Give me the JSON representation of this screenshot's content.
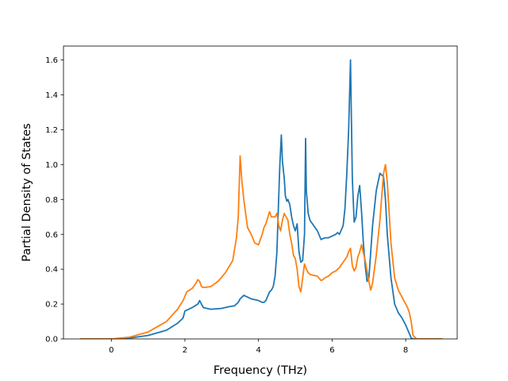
{
  "chart_data": {
    "type": "line",
    "title": "",
    "xlabel": "Frequency (THz)",
    "ylabel": "Partial Density of States",
    "xlim": [
      -1.3,
      9.4
    ],
    "ylim": [
      0,
      1.68
    ],
    "xticks": [
      0,
      2,
      4,
      6,
      8
    ],
    "xtick_labels": [
      "0",
      "2",
      "4",
      "6",
      "8"
    ],
    "yticks": [
      0.0,
      0.2,
      0.4,
      0.6,
      0.8,
      1.0,
      1.2,
      1.4,
      1.6
    ],
    "ytick_labels": [
      "0.0",
      "0.2",
      "0.4",
      "0.6",
      "0.8",
      "1.0",
      "1.2",
      "1.4",
      "1.6"
    ],
    "grid": false,
    "legend": "none",
    "series": [
      {
        "color": "#1f77b4",
        "x": [
          -0.85,
          0.0,
          0.5,
          1.0,
          1.5,
          1.8,
          1.95,
          2.0,
          2.2,
          2.35,
          2.4,
          2.5,
          2.7,
          3.0,
          3.2,
          3.35,
          3.45,
          3.5,
          3.6,
          3.8,
          4.0,
          4.1,
          4.15,
          4.2,
          4.3,
          4.35,
          4.4,
          4.45,
          4.5,
          4.55,
          4.58,
          4.62,
          4.65,
          4.7,
          4.73,
          4.77,
          4.8,
          4.85,
          4.9,
          4.95,
          5.0,
          5.05,
          5.1,
          5.15,
          5.2,
          5.25,
          5.28,
          5.3,
          5.35,
          5.4,
          5.5,
          5.6,
          5.7,
          5.8,
          5.9,
          6.0,
          6.1,
          6.15,
          6.2,
          6.3,
          6.35,
          6.4,
          6.45,
          6.5,
          6.55,
          6.6,
          6.65,
          6.7,
          6.75,
          6.8,
          6.85,
          6.9,
          6.95,
          7.0,
          7.05,
          7.1,
          7.2,
          7.3,
          7.4,
          7.45,
          7.5,
          7.6,
          7.7,
          7.8,
          7.9,
          8.0,
          8.1,
          8.15,
          8.2,
          8.3,
          9.0
        ],
        "y": [
          0.0,
          0.0,
          0.005,
          0.02,
          0.05,
          0.09,
          0.12,
          0.16,
          0.18,
          0.2,
          0.22,
          0.18,
          0.17,
          0.175,
          0.185,
          0.19,
          0.21,
          0.23,
          0.25,
          0.23,
          0.22,
          0.21,
          0.21,
          0.22,
          0.27,
          0.28,
          0.3,
          0.36,
          0.5,
          0.82,
          1.0,
          1.17,
          1.02,
          0.92,
          0.82,
          0.79,
          0.8,
          0.77,
          0.7,
          0.65,
          0.62,
          0.66,
          0.5,
          0.44,
          0.45,
          0.6,
          1.15,
          0.85,
          0.72,
          0.68,
          0.65,
          0.62,
          0.57,
          0.58,
          0.58,
          0.59,
          0.6,
          0.61,
          0.6,
          0.65,
          0.75,
          0.95,
          1.2,
          1.6,
          0.92,
          0.67,
          0.7,
          0.82,
          0.88,
          0.73,
          0.55,
          0.42,
          0.33,
          0.35,
          0.5,
          0.65,
          0.85,
          0.95,
          0.93,
          0.8,
          0.6,
          0.35,
          0.2,
          0.15,
          0.12,
          0.08,
          0.03,
          0.005,
          0.0,
          0.0,
          0.0
        ]
      },
      {
        "color": "#ff7f0e",
        "x": [
          -0.85,
          0.0,
          0.5,
          1.0,
          1.5,
          1.8,
          1.95,
          2.05,
          2.2,
          2.3,
          2.35,
          2.4,
          2.45,
          2.5,
          2.7,
          2.9,
          3.1,
          3.3,
          3.4,
          3.45,
          3.5,
          3.55,
          3.6,
          3.7,
          3.8,
          3.9,
          4.0,
          4.1,
          4.15,
          4.2,
          4.3,
          4.35,
          4.4,
          4.45,
          4.5,
          4.55,
          4.6,
          4.65,
          4.7,
          4.75,
          4.8,
          4.85,
          4.9,
          4.95,
          5.0,
          5.05,
          5.1,
          5.15,
          5.2,
          5.25,
          5.3,
          5.35,
          5.4,
          5.5,
          5.6,
          5.7,
          5.75,
          5.8,
          5.9,
          6.0,
          6.1,
          6.15,
          6.2,
          6.3,
          6.4,
          6.45,
          6.5,
          6.55,
          6.6,
          6.65,
          6.7,
          6.75,
          6.8,
          6.9,
          7.0,
          7.05,
          7.1,
          7.2,
          7.3,
          7.35,
          7.4,
          7.45,
          7.5,
          7.6,
          7.7,
          7.8,
          7.9,
          8.0,
          8.05,
          8.1,
          8.15,
          8.2,
          8.3,
          9.0
        ],
        "y": [
          0.0,
          0.0,
          0.01,
          0.04,
          0.1,
          0.17,
          0.22,
          0.27,
          0.29,
          0.32,
          0.34,
          0.33,
          0.3,
          0.295,
          0.3,
          0.33,
          0.38,
          0.45,
          0.58,
          0.7,
          1.05,
          0.9,
          0.8,
          0.64,
          0.6,
          0.55,
          0.54,
          0.6,
          0.64,
          0.66,
          0.73,
          0.7,
          0.7,
          0.7,
          0.72,
          0.65,
          0.62,
          0.68,
          0.72,
          0.7,
          0.68,
          0.6,
          0.55,
          0.48,
          0.46,
          0.4,
          0.3,
          0.27,
          0.35,
          0.43,
          0.4,
          0.38,
          0.37,
          0.365,
          0.36,
          0.335,
          0.34,
          0.35,
          0.36,
          0.38,
          0.39,
          0.4,
          0.41,
          0.44,
          0.47,
          0.5,
          0.52,
          0.42,
          0.39,
          0.41,
          0.47,
          0.5,
          0.54,
          0.45,
          0.33,
          0.28,
          0.32,
          0.48,
          0.68,
          0.82,
          0.95,
          1.0,
          0.9,
          0.55,
          0.35,
          0.28,
          0.24,
          0.2,
          0.18,
          0.15,
          0.1,
          0.02,
          0.0,
          0.0
        ]
      }
    ]
  }
}
